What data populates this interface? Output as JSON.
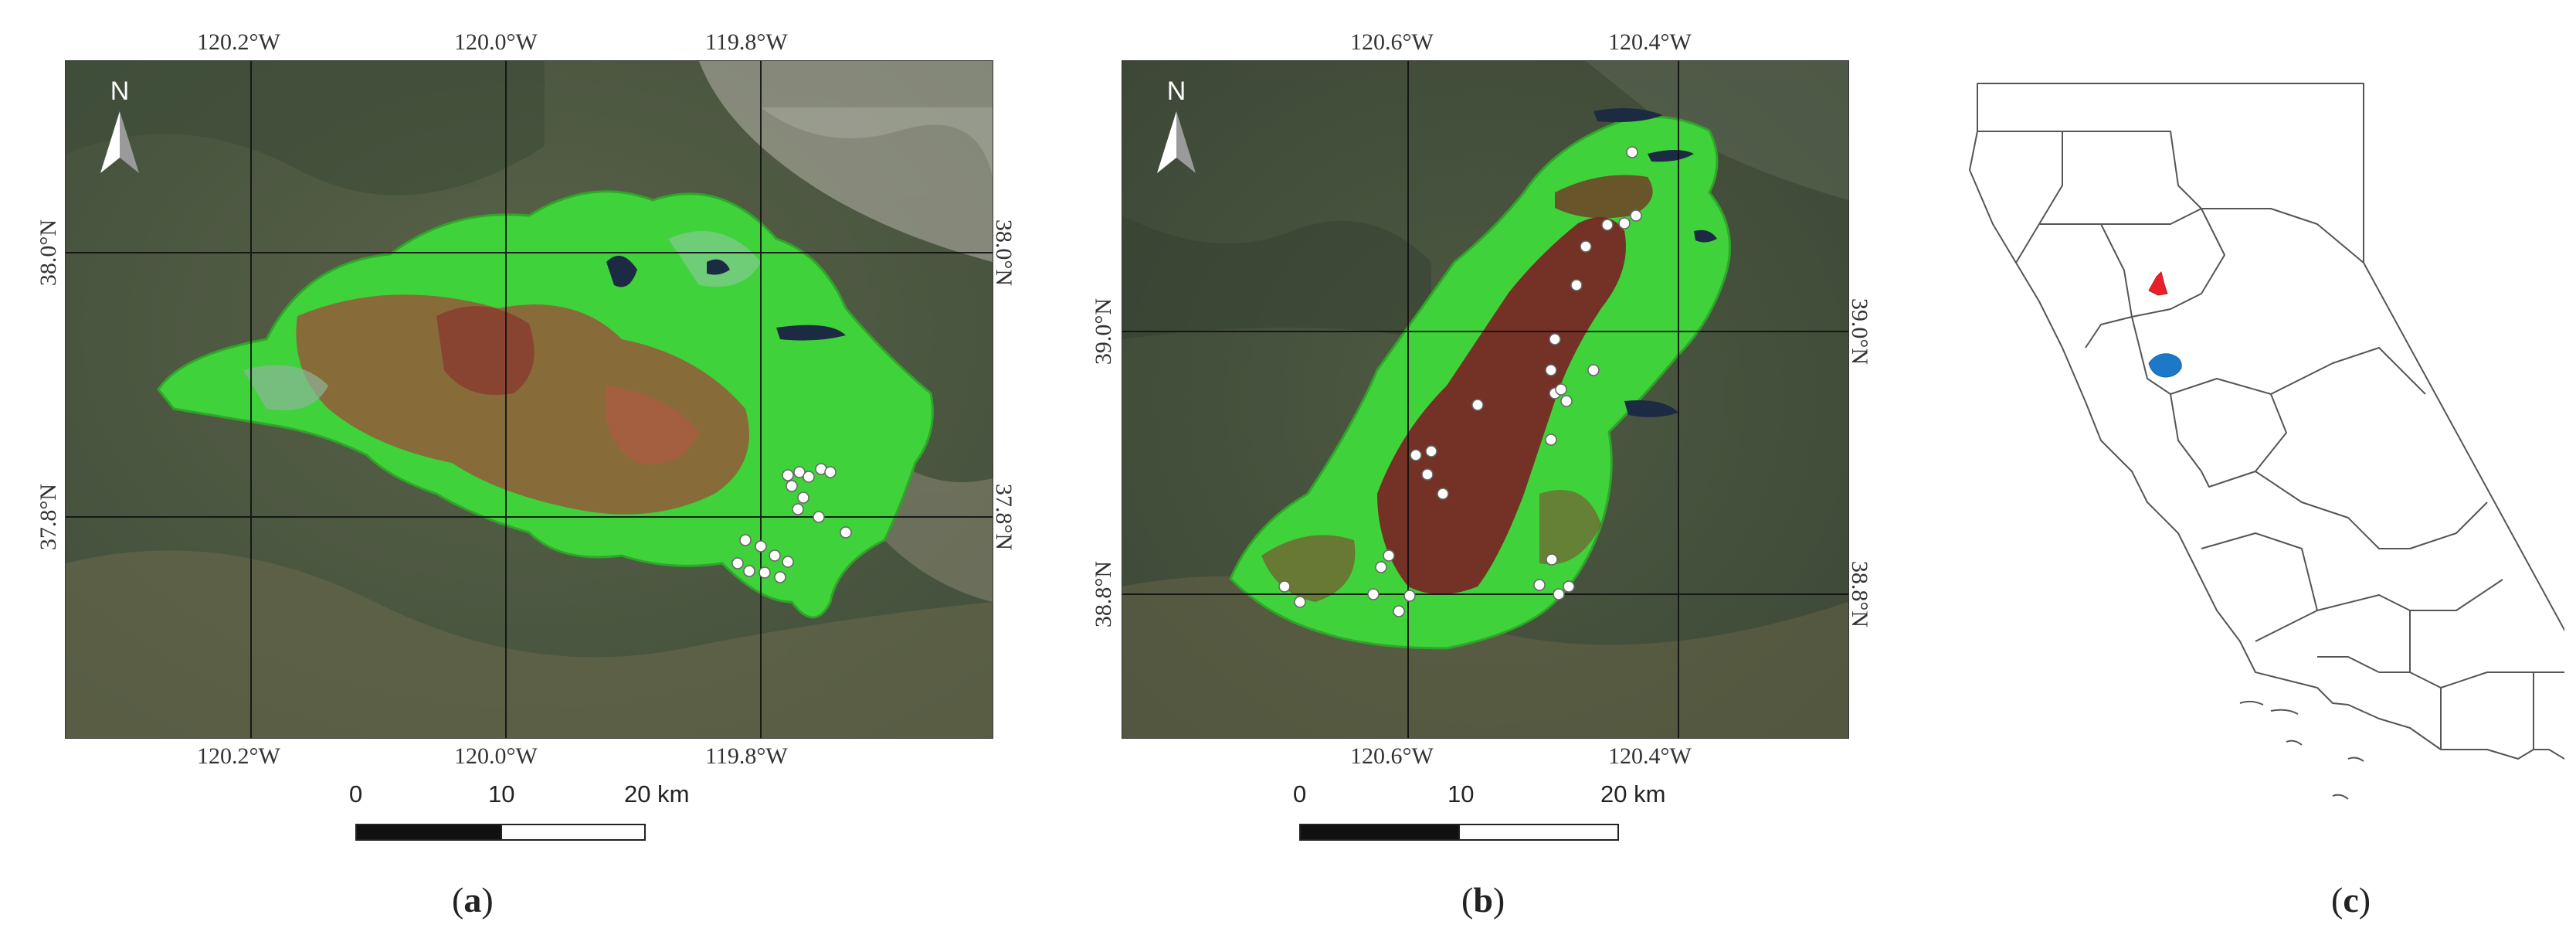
{
  "panels": [
    {
      "id": "a",
      "caption_letter": "a",
      "north_label": "N",
      "top_ticks": [
        "120.2°W",
        "120.0°W",
        "119.8°W"
      ],
      "bottom_ticks": [
        "120.2°W",
        "120.0°W",
        "119.8°W"
      ],
      "left_ticks": [
        "38.0°N",
        "37.8°N"
      ],
      "right_ticks": [
        "38.0°N",
        "37.8°N"
      ],
      "scale_labels": [
        "0",
        "10",
        "20 km"
      ]
    },
    {
      "id": "b",
      "caption_letter": "b",
      "north_label": "N",
      "top_ticks": [
        "120.6°W",
        "120.4°W"
      ],
      "bottom_ticks": [
        "120.6°W",
        "120.4°W"
      ],
      "left_ticks": [
        "39.0°N",
        "38.8°N"
      ],
      "right_ticks": [
        "39.0°N",
        "38.8°N"
      ],
      "scale_labels": [
        "0",
        "10",
        "20 km"
      ]
    },
    {
      "id": "c",
      "caption_letter": "c"
    }
  ],
  "colors": {
    "burn_fill": "#3fd23a",
    "burn_severity": "#a04a3a",
    "high_severity": "#7a1f24",
    "plot_points": "#ffffff",
    "locator_red": "#e8202a",
    "locator_blue": "#1e78c8",
    "background_imagery": "#4a5a40"
  }
}
